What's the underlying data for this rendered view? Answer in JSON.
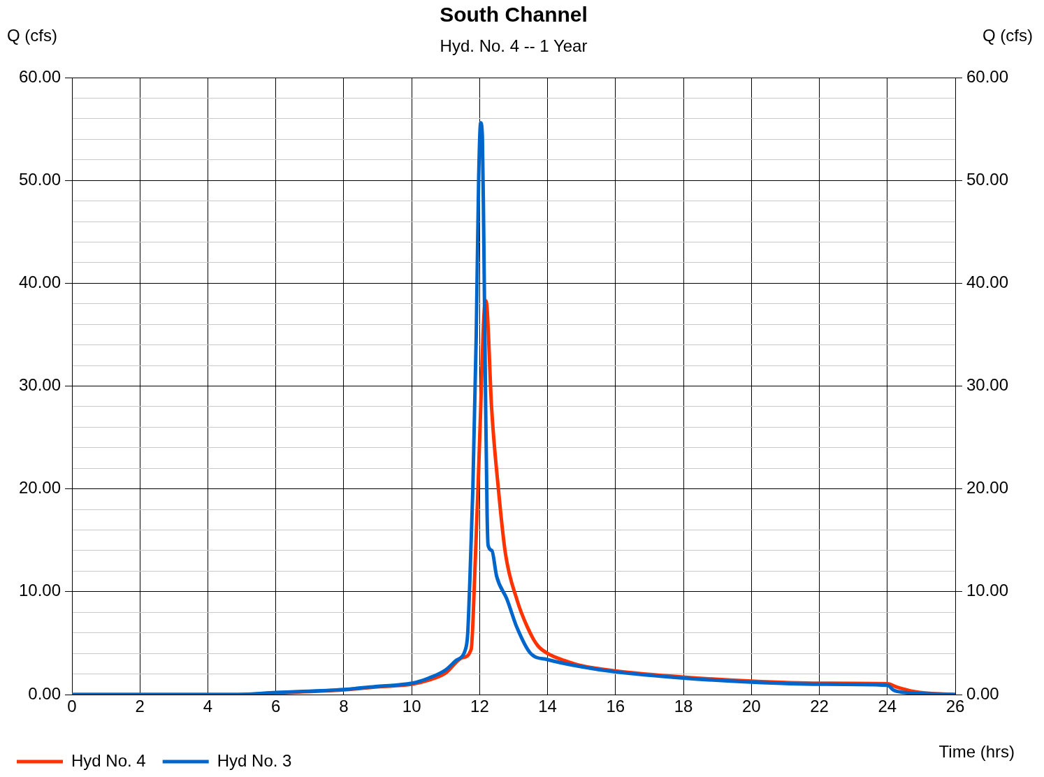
{
  "chart_data": {
    "type": "line",
    "title": "South Channel",
    "subtitle": "Hyd. No. 4 -- 1 Year",
    "xlabel": "Time (hrs)",
    "ylabel": "Q (cfs)",
    "y2label": "Q (cfs)",
    "xlim": [
      0,
      26
    ],
    "xticks": [
      0,
      2,
      4,
      6,
      8,
      10,
      12,
      14,
      16,
      18,
      20,
      22,
      24,
      26
    ],
    "ylim": [
      0,
      60
    ],
    "yticks": [
      {
        "value": 0,
        "label": "0.00"
      },
      {
        "value": 2,
        "label": null
      },
      {
        "value": 4,
        "label": null
      },
      {
        "value": 6,
        "label": null
      },
      {
        "value": 8,
        "label": null
      },
      {
        "value": 10,
        "label": "10.00"
      },
      {
        "value": 12,
        "label": null
      },
      {
        "value": 14,
        "label": null
      },
      {
        "value": 16,
        "label": null
      },
      {
        "value": 18,
        "label": null
      },
      {
        "value": 20,
        "label": "20.00"
      },
      {
        "value": 22,
        "label": null
      },
      {
        "value": 24,
        "label": null
      },
      {
        "value": 26,
        "label": null
      },
      {
        "value": 28,
        "label": null
      },
      {
        "value": 30,
        "label": "30.00"
      },
      {
        "value": 32,
        "label": null
      },
      {
        "value": 34,
        "label": null
      },
      {
        "value": 36,
        "label": null
      },
      {
        "value": 38,
        "label": null
      },
      {
        "value": 40,
        "label": "40.00"
      },
      {
        "value": 42,
        "label": null
      },
      {
        "value": 44,
        "label": null
      },
      {
        "value": 46,
        "label": null
      },
      {
        "value": 48,
        "label": null
      },
      {
        "value": 50,
        "label": "50.00"
      },
      {
        "value": 52,
        "label": null
      },
      {
        "value": 54,
        "label": null
      },
      {
        "value": 56,
        "label": null
      },
      {
        "value": 58,
        "label": null
      },
      {
        "value": 60,
        "label": "60.00"
      }
    ],
    "y2lim": [
      0,
      60
    ],
    "y2ticks": [
      {
        "value": 0,
        "label": "0.00"
      },
      {
        "value": 10,
        "label": "10.00"
      },
      {
        "value": 20,
        "label": "20.00"
      },
      {
        "value": 30,
        "label": "30.00"
      },
      {
        "value": 40,
        "label": "40.00"
      },
      {
        "value": 50,
        "label": "50.00"
      },
      {
        "value": 60,
        "label": "60.00"
      }
    ],
    "grid": true,
    "legend": "bottom left",
    "marker": "none",
    "line_style": "solid",
    "series": [
      {
        "name": "Hyd No. 4",
        "color": "#ff3300",
        "x": [
          0,
          4.9,
          6,
          8,
          9,
          10,
          10.5,
          11,
          11.5,
          11.75,
          11.87,
          11.95,
          12.03,
          12.1,
          12.17,
          12.22,
          12.35,
          12.54,
          12.76,
          13.1,
          13.4,
          13.7,
          14,
          14.5,
          15,
          16,
          18,
          20,
          22,
          24,
          24.3,
          24.7,
          25.3,
          26
        ],
        "values": [
          0,
          0,
          0.15,
          0.45,
          0.75,
          1.0,
          1.4,
          2.1,
          3.6,
          4.4,
          12.9,
          20,
          27.7,
          35,
          38.3,
          37.5,
          28,
          20.4,
          13.7,
          9.2,
          6.6,
          4.8,
          4.0,
          3.3,
          2.8,
          2.3,
          1.7,
          1.3,
          1.1,
          1.05,
          0.7,
          0.35,
          0.1,
          0
        ]
      },
      {
        "name": "Hyd No. 3",
        "color": "#0066cc",
        "x": [
          0,
          4.9,
          6,
          8,
          9,
          10,
          10.5,
          11,
          11.3,
          11.6,
          11.65,
          11.7,
          11.8,
          11.9,
          11.97,
          12.03,
          12.08,
          12.12,
          12.17,
          12.22,
          12.25,
          12.36,
          12.5,
          12.8,
          13.1,
          13.5,
          14,
          15,
          16,
          18,
          20,
          22,
          24,
          24.2,
          24.5,
          25,
          26
        ],
        "values": [
          0,
          0,
          0.2,
          0.5,
          0.8,
          1.1,
          1.6,
          2.4,
          3.3,
          4.6,
          6,
          10,
          20,
          35,
          50,
          55.6,
          54.3,
          45,
          30,
          17.5,
          14.5,
          14.0,
          11.5,
          9.3,
          6.5,
          4.0,
          3.4,
          2.7,
          2.2,
          1.6,
          1.2,
          1.0,
          0.9,
          0.4,
          0.2,
          0.1,
          0
        ]
      }
    ]
  }
}
